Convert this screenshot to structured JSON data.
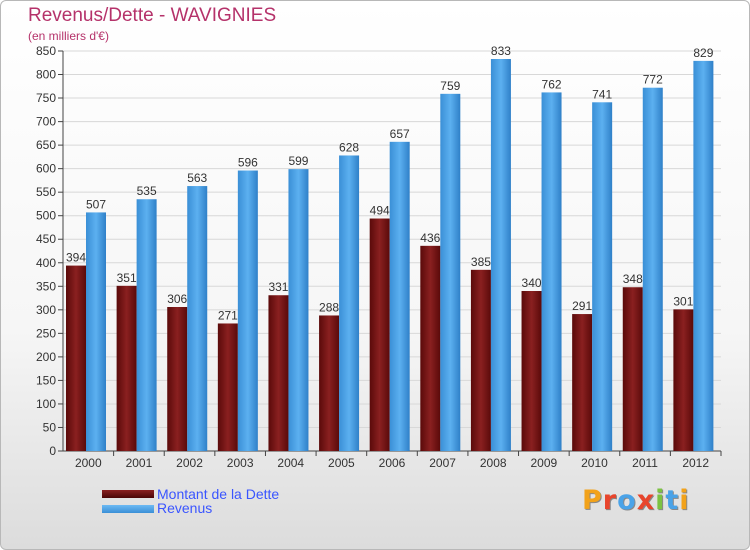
{
  "header": {
    "title": "Revenus/Dette - WAVIGNIES",
    "subtitle": "(en milliers d'€)"
  },
  "legend": [
    {
      "label": "Montant de la Dette",
      "color": "#7a1414"
    },
    {
      "label": "Revenus",
      "color": "#4aa3e8"
    }
  ],
  "logo": {
    "text": "Proxiti",
    "colors": [
      "#f2a21a",
      "#e8452c",
      "#4aa3e8",
      "#e8452c",
      "#7cc242",
      "#4aa3e8",
      "#f2a21a"
    ]
  },
  "colors": {
    "debt": "#7a1414",
    "revenue": "#4aa3e8",
    "title": "#b5326a",
    "legend_text": "#3a55ff"
  },
  "chart_data": {
    "type": "bar",
    "categories": [
      "2000",
      "2001",
      "2002",
      "2003",
      "2004",
      "2005",
      "2006",
      "2007",
      "2008",
      "2009",
      "2010",
      "2011",
      "2012"
    ],
    "series": [
      {
        "name": "Montant de la Dette",
        "values": [
          394,
          351,
          306,
          271,
          331,
          288,
          494,
          436,
          385,
          340,
          291,
          348,
          301
        ]
      },
      {
        "name": "Revenus",
        "values": [
          507,
          535,
          563,
          596,
          599,
          628,
          657,
          759,
          833,
          762,
          741,
          772,
          829
        ]
      }
    ],
    "yticks": [
      0,
      50,
      100,
      150,
      200,
      250,
      300,
      350,
      400,
      450,
      500,
      550,
      600,
      650,
      700,
      750,
      800,
      850
    ],
    "ylim": [
      0,
      850
    ],
    "grid": true,
    "legend_position": "bottom-left"
  }
}
